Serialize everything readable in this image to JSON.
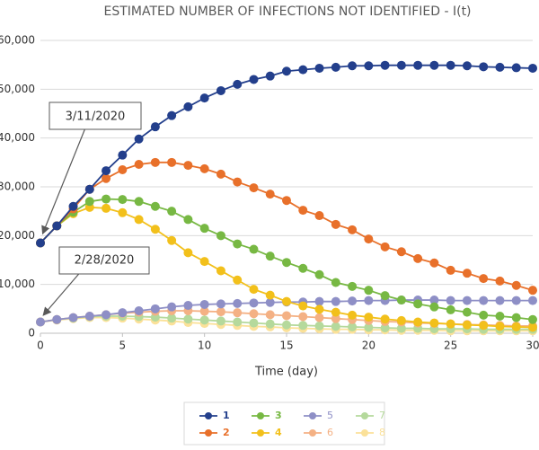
{
  "chart_data": {
    "type": "line",
    "title": "ESTIMATED NUMBER OF INFECTIONS NOT IDENTIFIED - I(t)",
    "x_label": "Time (day)",
    "x": [
      0,
      1,
      2,
      3,
      4,
      5,
      6,
      7,
      8,
      9,
      10,
      11,
      12,
      13,
      14,
      15,
      16,
      17,
      18,
      19,
      20,
      21,
      22,
      23,
      24,
      25,
      26,
      27,
      28,
      29,
      30
    ],
    "xlim": [
      0,
      30
    ],
    "xticks": [
      0,
      5,
      10,
      15,
      20,
      25,
      30
    ],
    "ylim": [
      0,
      60000
    ],
    "yticks": [
      0,
      {
        "value": 10000,
        "label": "10,000"
      },
      {
        "value": 20000,
        "label": "20,000"
      },
      {
        "value": 30000,
        "label": "30,000"
      },
      {
        "value": 40000,
        "label": "40,000"
      },
      {
        "value": 50000,
        "label": "50,000"
      },
      {
        "value": 60000,
        "label": "60,000"
      }
    ],
    "grid": true,
    "series": [
      {
        "name": "1",
        "color": "#233f8c",
        "values": [
          18500,
          22000,
          26000,
          29500,
          33300,
          36500,
          39800,
          42300,
          44600,
          46400,
          48200,
          49700,
          51000,
          52000,
          52700,
          53700,
          54000,
          54300,
          54500,
          54800,
          54800,
          54900,
          54900,
          54900,
          54900,
          54900,
          54800,
          54600,
          54500,
          54400,
          54300
        ]
      },
      {
        "name": "2",
        "color": "#e8702a",
        "values": [
          18500,
          22000,
          25500,
          29500,
          31700,
          33500,
          34600,
          35000,
          35000,
          34400,
          33700,
          32600,
          31000,
          29800,
          28500,
          27200,
          25200,
          24100,
          22300,
          21200,
          19300,
          17700,
          16700,
          15300,
          14400,
          12900,
          12300,
          11200,
          10700,
          9800,
          8800
        ]
      },
      {
        "name": "3",
        "color": "#77b843",
        "values": [
          18500,
          22000,
          24800,
          27000,
          27500,
          27400,
          27000,
          26000,
          25000,
          23300,
          21500,
          20000,
          18300,
          17200,
          15800,
          14500,
          13300,
          12000,
          10400,
          9600,
          8800,
          7700,
          6800,
          6000,
          5400,
          4800,
          4300,
          3700,
          3500,
          3200,
          2800
        ]
      },
      {
        "name": "4",
        "color": "#f2c01b",
        "values": [
          18500,
          22000,
          24500,
          25800,
          25600,
          24700,
          23300,
          21300,
          19000,
          16500,
          14700,
          12800,
          10900,
          9000,
          7800,
          6500,
          5600,
          4900,
          4300,
          3700,
          3300,
          2900,
          2600,
          2300,
          2100,
          1900,
          1700,
          1600,
          1400,
          1300,
          1200
        ]
      },
      {
        "name": "5",
        "color": "#8e8fc6",
        "values": [
          2300,
          2800,
          3200,
          3500,
          3800,
          4200,
          4600,
          5000,
          5400,
          5700,
          5900,
          6000,
          6100,
          6200,
          6300,
          6400,
          6400,
          6500,
          6500,
          6600,
          6700,
          6700,
          6800,
          6800,
          6800,
          6700,
          6700,
          6700,
          6700,
          6700,
          6700
        ]
      },
      {
        "name": "6",
        "color": "#f4b184",
        "values": [
          2300,
          2800,
          3200,
          3500,
          3800,
          4100,
          4300,
          4500,
          4600,
          4600,
          4500,
          4400,
          4200,
          4000,
          3800,
          3600,
          3400,
          3200,
          3000,
          2800,
          2600,
          2400,
          2300,
          2100,
          2000,
          1900,
          1800,
          1700,
          1600,
          1500,
          1500
        ]
      },
      {
        "name": "7",
        "color": "#b5d99c",
        "values": [
          2300,
          2800,
          3100,
          3400,
          3500,
          3500,
          3400,
          3300,
          3100,
          2900,
          2700,
          2500,
          2300,
          2100,
          1900,
          1700,
          1600,
          1500,
          1400,
          1300,
          1200,
          1100,
          1000,
          1000,
          900,
          900,
          900,
          800,
          800,
          800,
          800
        ]
      },
      {
        "name": "8",
        "color": "#fbe199",
        "values": [
          2300,
          2700,
          3000,
          3200,
          3200,
          3100,
          2900,
          2700,
          2500,
          2200,
          2000,
          1800,
          1600,
          1400,
          1300,
          1100,
          1000,
          900,
          800,
          800,
          700,
          700,
          600,
          600,
          600,
          500,
          500,
          500,
          500,
          500,
          500
        ]
      }
    ],
    "annotations": [
      {
        "text": "3/11/2020"
      },
      {
        "text": "2/28/2020"
      }
    ]
  }
}
